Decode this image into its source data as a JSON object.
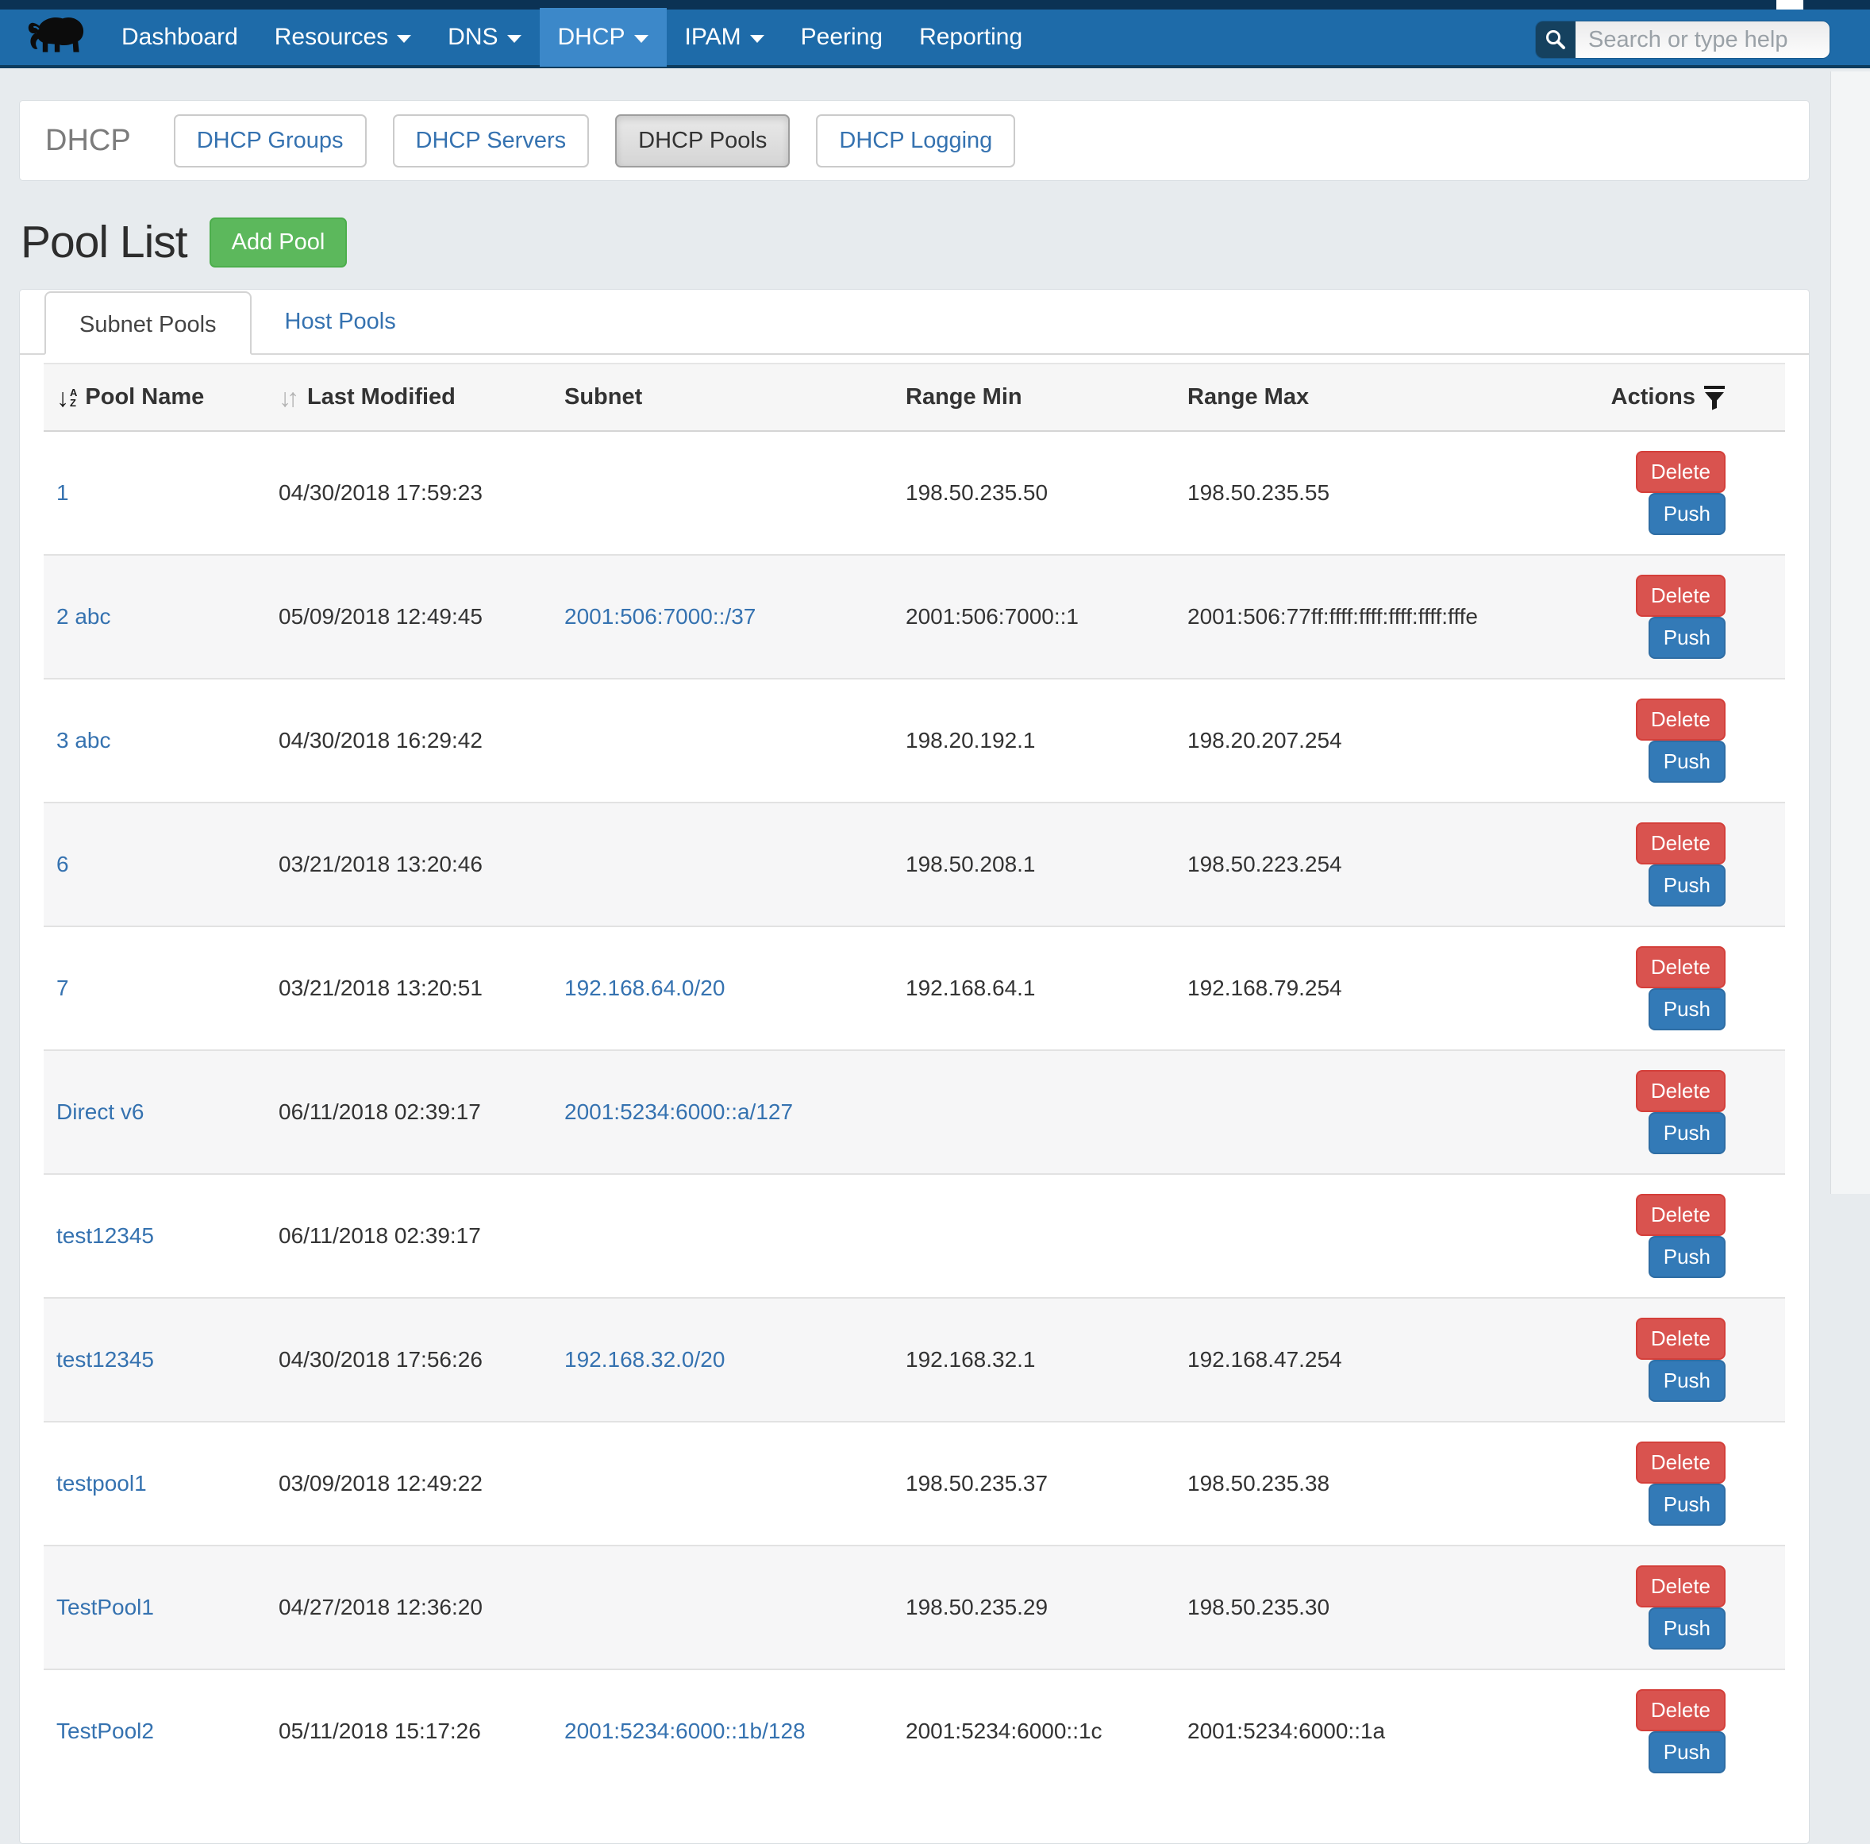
{
  "navbar": {
    "items": [
      {
        "label": "Dashboard",
        "caret": false,
        "active": false
      },
      {
        "label": "Resources",
        "caret": true,
        "active": false
      },
      {
        "label": "DNS",
        "caret": true,
        "active": false
      },
      {
        "label": "DHCP",
        "caret": true,
        "active": true
      },
      {
        "label": "IPAM",
        "caret": true,
        "active": false
      },
      {
        "label": "Peering",
        "caret": false,
        "active": false
      },
      {
        "label": "Reporting",
        "caret": false,
        "active": false
      }
    ],
    "search_placeholder": "Search or type help",
    "logo_icon": "mammoth-logo"
  },
  "section": {
    "title": "DHCP",
    "buttons": [
      {
        "label": "DHCP Groups",
        "active": false
      },
      {
        "label": "DHCP Servers",
        "active": false
      },
      {
        "label": "DHCP Pools",
        "active": true
      },
      {
        "label": "DHCP Logging",
        "active": false
      }
    ]
  },
  "page": {
    "title": "Pool List",
    "add_button": "Add Pool"
  },
  "tabs": [
    {
      "label": "Subnet Pools",
      "active": true
    },
    {
      "label": "Host Pools",
      "active": false
    }
  ],
  "table": {
    "columns": [
      "Pool Name",
      "Last Modified",
      "Subnet",
      "Range Min",
      "Range Max",
      "Actions"
    ],
    "icons": {
      "pool_name_sort": "sort-alpha-ascending",
      "last_modified_sort": "sort-toggle-updown",
      "actions_filter": "filter-funnel"
    },
    "row_actions": [
      "Delete",
      "Push"
    ],
    "rows": [
      {
        "name": "1",
        "modified": "04/30/2018 17:59:23",
        "subnet": "",
        "range_min": "198.50.235.50",
        "range_max": "198.50.235.55"
      },
      {
        "name": "2 abc",
        "modified": "05/09/2018 12:49:45",
        "subnet": "2001:506:7000::/37",
        "range_min": "2001:506:7000::1",
        "range_max": "2001:506:77ff:ffff:ffff:ffff:ffff:fffe"
      },
      {
        "name": "3 abc",
        "modified": "04/30/2018 16:29:42",
        "subnet": "",
        "range_min": "198.20.192.1",
        "range_max": "198.20.207.254"
      },
      {
        "name": "6",
        "modified": "03/21/2018 13:20:46",
        "subnet": "",
        "range_min": "198.50.208.1",
        "range_max": "198.50.223.254"
      },
      {
        "name": "7",
        "modified": "03/21/2018 13:20:51",
        "subnet": "192.168.64.0/20",
        "range_min": "192.168.64.1",
        "range_max": "192.168.79.254"
      },
      {
        "name": "Direct v6",
        "modified": "06/11/2018 02:39:17",
        "subnet": "2001:5234:6000::a/127",
        "range_min": "",
        "range_max": ""
      },
      {
        "name": "test12345",
        "modified": "06/11/2018 02:39:17",
        "subnet": "",
        "range_min": "",
        "range_max": ""
      },
      {
        "name": "test12345",
        "modified": "04/30/2018 17:56:26",
        "subnet": "192.168.32.0/20",
        "range_min": "192.168.32.1",
        "range_max": "192.168.47.254"
      },
      {
        "name": "testpool1",
        "modified": "03/09/2018 12:49:22",
        "subnet": "",
        "range_min": "198.50.235.37",
        "range_max": "198.50.235.38"
      },
      {
        "name": "TestPool1",
        "modified": "04/27/2018 12:36:20",
        "subnet": "",
        "range_min": "198.50.235.29",
        "range_max": "198.50.235.30"
      },
      {
        "name": "TestPool2",
        "modified": "05/11/2018 15:17:26",
        "subnet": "2001:5234:6000::1b/128",
        "range_min": "2001:5234:6000::1c",
        "range_max": "2001:5234:6000::1a"
      }
    ]
  },
  "colors": {
    "navbar": "#1e6ba9",
    "navbar_active": "#3c88c9",
    "top_strip": "#0b3254",
    "link_blue": "#3572b0",
    "delete_red": "#d9534f",
    "push_blue": "#337ab7",
    "add_green": "#5cb85c",
    "page_bg": "#e7ebee"
  }
}
